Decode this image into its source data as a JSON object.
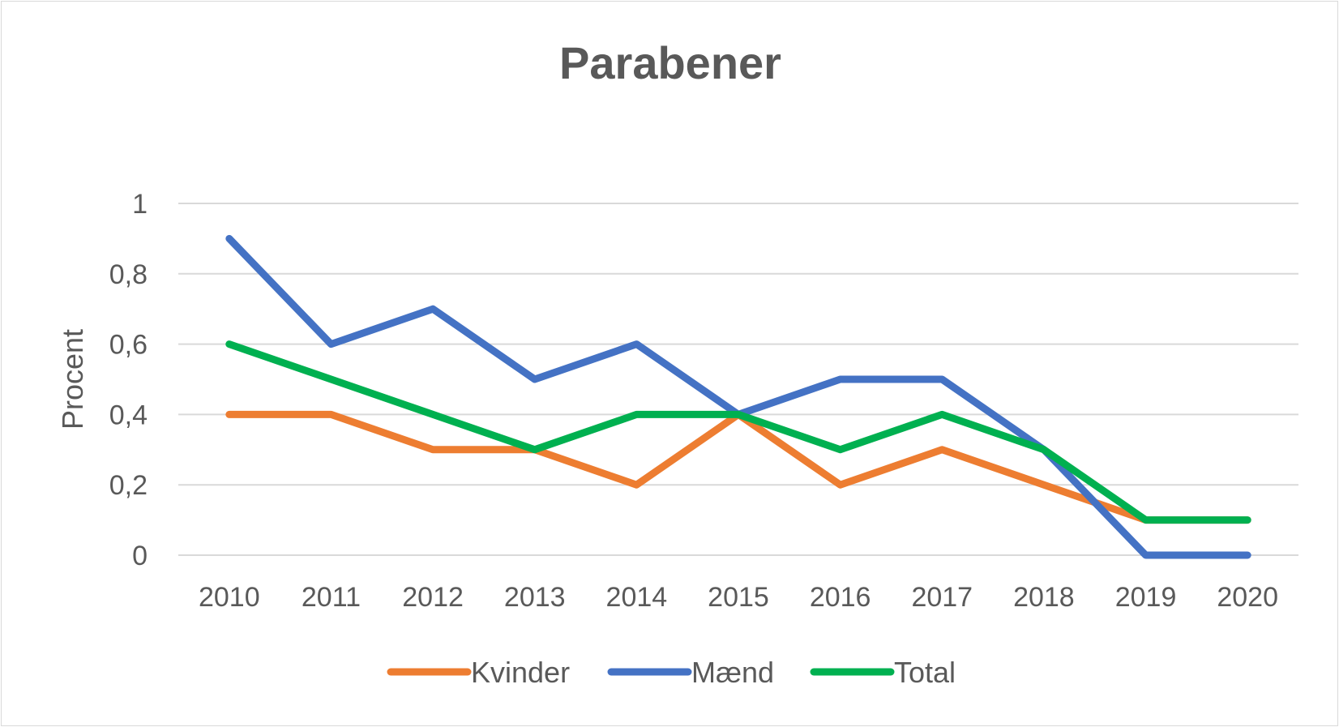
{
  "chart_data": {
    "type": "line",
    "title": "Parabener",
    "xlabel": "",
    "ylabel": "Procent",
    "categories": [
      "2010",
      "2011",
      "2012",
      "2013",
      "2014",
      "2015",
      "2016",
      "2017",
      "2018",
      "2019",
      "2020"
    ],
    "ylim": [
      0,
      1
    ],
    "yticks": [
      0,
      0.2,
      0.4,
      0.6,
      0.8,
      1
    ],
    "ytick_labels": [
      "0",
      "0,2",
      "0,4",
      "0,6",
      "0,8",
      "1"
    ],
    "grid": true,
    "legend_position": "bottom",
    "series": [
      {
        "name": "Kvinder",
        "color": "#ed7d31",
        "values": [
          0.4,
          0.4,
          0.3,
          0.3,
          0.2,
          0.4,
          0.2,
          0.3,
          0.2,
          0.1,
          0.1
        ]
      },
      {
        "name": "Mænd",
        "color": "#4472c4",
        "values": [
          0.9,
          0.6,
          0.7,
          0.5,
          0.6,
          0.4,
          0.5,
          0.5,
          0.3,
          0.0,
          0.0
        ]
      },
      {
        "name": "Total",
        "color": "#00b050",
        "values": [
          0.6,
          0.5,
          0.4,
          0.3,
          0.4,
          0.4,
          0.3,
          0.4,
          0.3,
          0.1,
          0.1
        ]
      }
    ]
  }
}
